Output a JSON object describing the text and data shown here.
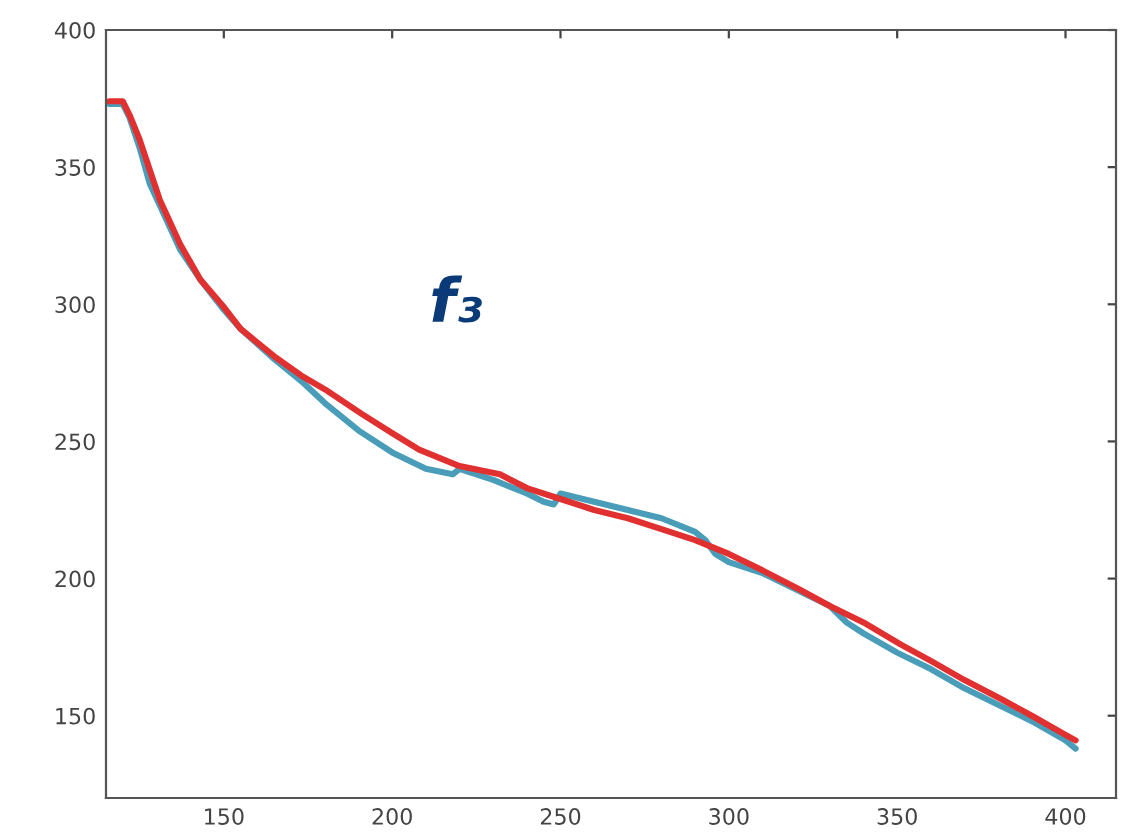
{
  "chart_data": {
    "type": "line",
    "xlim": [
      115,
      415
    ],
    "ylim": [
      120,
      400
    ],
    "xticks": [
      150,
      200,
      250,
      300,
      350,
      400
    ],
    "yticks": [
      150,
      200,
      250,
      300,
      350,
      400
    ],
    "grid": false,
    "legend": false,
    "marker": "none",
    "line_style": "solid",
    "annotations": [
      "f₃"
    ],
    "series": [
      {
        "color": "#4a9db8",
        "x": [
          116,
          120,
          122,
          125,
          128,
          131,
          137,
          143,
          150,
          155,
          165,
          173,
          180,
          190,
          200,
          210,
          218,
          220,
          230,
          240,
          245,
          248,
          250,
          260,
          270,
          280,
          290,
          293,
          296,
          300,
          310,
          320,
          330,
          335,
          340,
          350,
          360,
          370,
          380,
          390,
          400,
          403
        ],
        "values": [
          373,
          373,
          368,
          357,
          344,
          336,
          320,
          309,
          298,
          291,
          280,
          272,
          264,
          254,
          246,
          240,
          238,
          240,
          236,
          231,
          228,
          227,
          231,
          228,
          225,
          222,
          217,
          214,
          209,
          206,
          202,
          196,
          190,
          184,
          180,
          173,
          167,
          160,
          154,
          148,
          141,
          138
        ]
      },
      {
        "color": "#e03030",
        "x": [
          116,
          120,
          122,
          125,
          131,
          137,
          143,
          150,
          155,
          165,
          173,
          180,
          191,
          200,
          208,
          220,
          232,
          240,
          250,
          260,
          270,
          280,
          290,
          300,
          310,
          321,
          330,
          340,
          351,
          360,
          370,
          381,
          390,
          400,
          403
        ],
        "values": [
          374,
          374,
          369,
          360,
          338,
          322,
          309,
          299,
          291,
          281,
          274,
          269,
          260,
          253,
          247,
          241,
          238,
          233,
          229,
          225,
          222,
          218,
          214,
          209,
          203,
          196,
          190,
          184,
          176,
          170,
          163,
          156,
          150,
          143,
          141
        ]
      }
    ]
  }
}
